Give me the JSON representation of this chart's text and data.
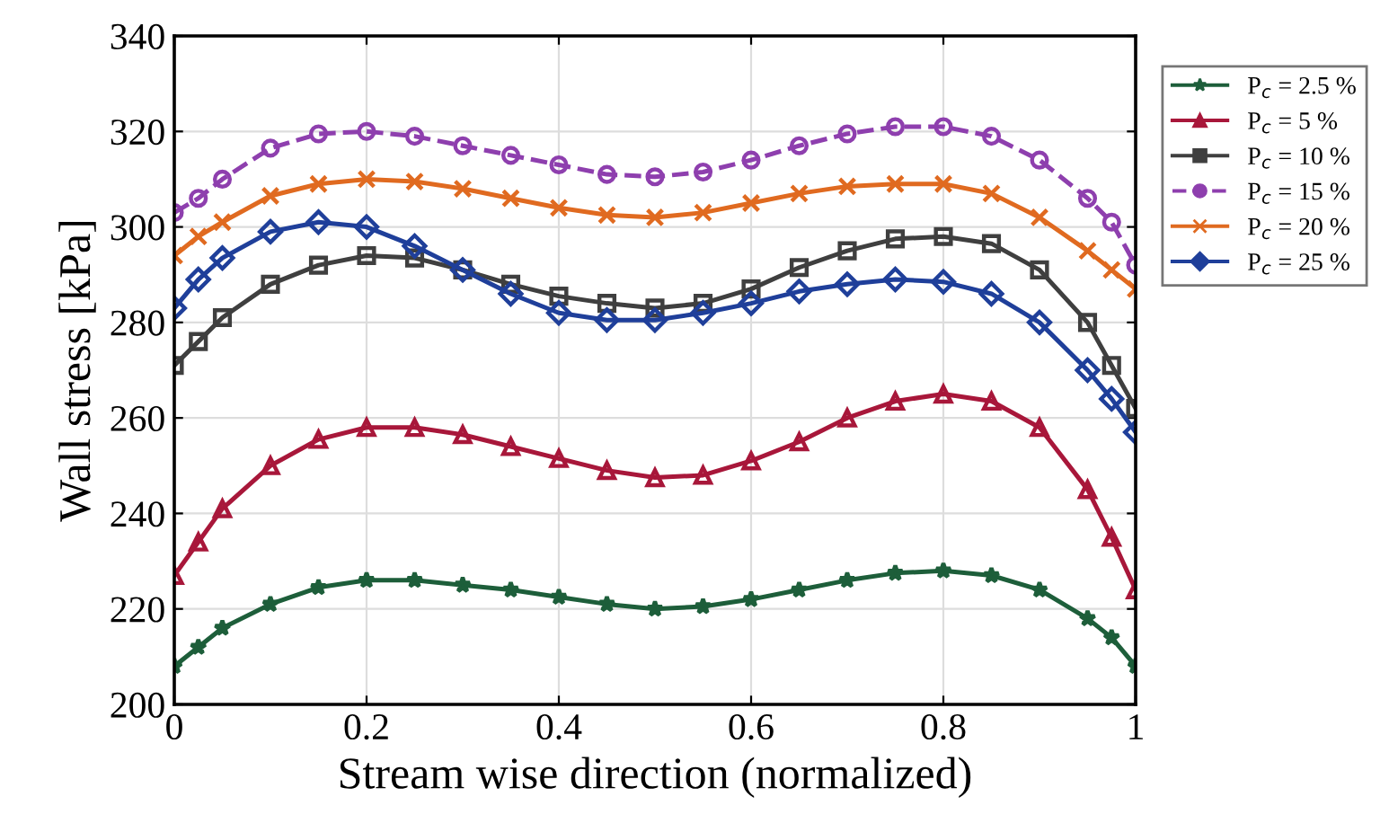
{
  "chart_data": {
    "type": "line",
    "xlabel": "Stream wise direction (normalized)",
    "ylabel": "Wall stress [kPa]",
    "x": [
      0,
      0.025,
      0.05,
      0.1,
      0.15,
      0.2,
      0.25,
      0.3,
      0.35,
      0.4,
      0.45,
      0.5,
      0.55,
      0.6,
      0.65,
      0.7,
      0.75,
      0.8,
      0.85,
      0.9,
      0.95,
      0.975,
      1
    ],
    "series": [
      {
        "name": "P$_{c}$ = 2.5 %",
        "color": "#1d5e3a",
        "marker": "star",
        "values": [
          208,
          212,
          216,
          221,
          224.5,
          226,
          226,
          225,
          224,
          222.5,
          221,
          220,
          220.5,
          222,
          224,
          226,
          227.5,
          228,
          227,
          224,
          218,
          214,
          208
        ]
      },
      {
        "name": "P$_{c}$ = 5 %",
        "color": "#a8173a",
        "marker": "triangle",
        "values": [
          227,
          234,
          241,
          250,
          255.5,
          258,
          258,
          256.5,
          254,
          251.5,
          249,
          247.5,
          248,
          251,
          255,
          260,
          263.5,
          265,
          263.5,
          258,
          245,
          235,
          224
        ]
      },
      {
        "name": "P$_{c}$ = 10 %",
        "color": "#3f3f3f",
        "marker": "square",
        "values": [
          271,
          276,
          281,
          288,
          292,
          294,
          293.5,
          291,
          288,
          285.5,
          284,
          283,
          284,
          287,
          291.5,
          295,
          297.5,
          298,
          296.5,
          291,
          280,
          271,
          262
        ]
      },
      {
        "name": "P$_{c}$ = 15 %",
        "color": "#8e3fae",
        "marker": "circle",
        "line_style": "dashed",
        "values": [
          303,
          306,
          310,
          316.5,
          319.5,
          320,
          319,
          317,
          315,
          313,
          311,
          310.5,
          311.5,
          314,
          317,
          319.5,
          321,
          321,
          319,
          314,
          306,
          301,
          292
        ]
      },
      {
        "name": "P$_{c}$ = 20 %",
        "color": "#e06a20",
        "marker": "cross",
        "values": [
          294,
          298,
          301,
          306.5,
          309,
          310,
          309.5,
          308,
          306,
          304,
          302.5,
          302,
          303,
          305,
          307,
          308.5,
          309,
          309,
          307,
          302,
          295,
          291,
          287
        ]
      },
      {
        "name": "P$_{c}$ = 25 %",
        "color": "#1f3f9a",
        "marker": "diamond",
        "values": [
          283,
          289,
          293.5,
          299,
          301,
          300,
          296,
          291,
          286,
          282,
          280.5,
          280.5,
          282,
          284,
          286.5,
          288,
          289,
          288.5,
          286,
          280,
          270,
          264,
          257
        ]
      }
    ],
    "xlim": [
      0,
      1
    ],
    "xticks": [
      0,
      0.2,
      0.4,
      0.6,
      0.8,
      1
    ],
    "ylim": [
      200,
      340
    ],
    "yticks": [
      200,
      220,
      240,
      260,
      280,
      300,
      320,
      340
    ],
    "grid": true,
    "legend": "top right"
  }
}
